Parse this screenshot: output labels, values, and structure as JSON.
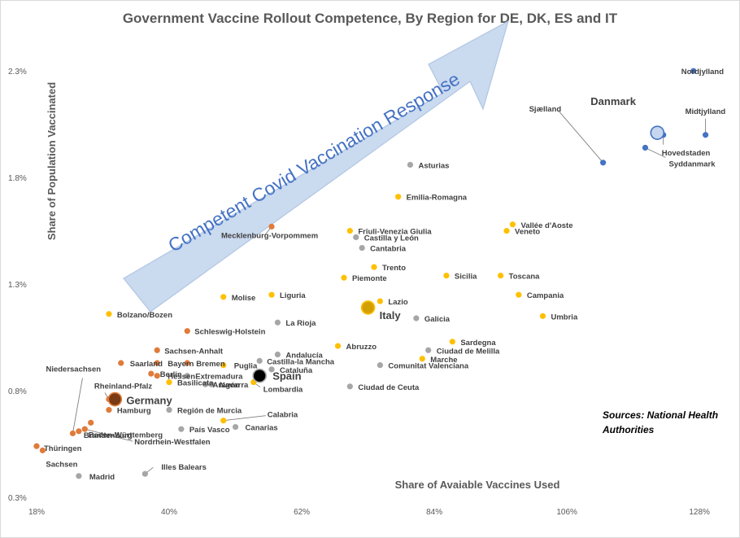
{
  "chart_data": {
    "type": "scatter",
    "title": "Government Vaccine Rollout Competence, By Region for DE, DK, ES and IT",
    "xlabel": "Share of Avaiable Vaccines Used",
    "ylabel": "Share of Population Vaccinated",
    "xlim": [
      0.18,
      1.3
    ],
    "ylim": [
      0.003,
      0.024
    ],
    "x_ticks": [
      "18%",
      "40%",
      "62%",
      "84%",
      "106%",
      "128%"
    ],
    "x_tick_values": [
      0.18,
      0.4,
      0.62,
      0.84,
      1.06,
      1.28
    ],
    "y_ticks": [
      "0.3%",
      "0.8%",
      "1.3%",
      "1.8%",
      "2.3%"
    ],
    "y_tick_values": [
      0.003,
      0.008,
      0.013,
      0.018,
      0.023
    ],
    "grid": false,
    "annotation_arrow": "Competent Covid Vaccination Response",
    "source_note": [
      "Sources: National Health",
      "Authorities"
    ],
    "colors": {
      "Germany": "#e07b39",
      "Denmark": "#4472c4",
      "Spain": "#a6a6a6",
      "Italy": "#ffc000"
    },
    "series": [
      {
        "name": "Germany",
        "points": [
          {
            "label": "Mecklenburg-Vorpommem",
            "x": 0.57,
            "y": 0.0157
          },
          {
            "label": "Schleswig-Holstein",
            "x": 0.43,
            "y": 0.0108
          },
          {
            "label": "Sachsen-Anhalt",
            "x": 0.38,
            "y": 0.0099
          },
          {
            "label": "Saarland",
            "x": 0.32,
            "y": 0.0093
          },
          {
            "label": "Bayern",
            "x": 0.38,
            "y": 0.0093
          },
          {
            "label": "Bremen",
            "x": 0.43,
            "y": 0.0093
          },
          {
            "label": "Berlin",
            "x": 0.37,
            "y": 0.0088
          },
          {
            "label": "Hessen",
            "x": 0.38,
            "y": 0.0087
          },
          {
            "label": "Rheinland-Pfalz",
            "x": 0.3,
            "y": 0.0076
          },
          {
            "label": "Hamburg",
            "x": 0.3,
            "y": 0.0071
          },
          {
            "label": "Niedersachsen",
            "x": 0.24,
            "y": 0.006
          },
          {
            "label": "Baden-Württemberg",
            "x": 0.27,
            "y": 0.0065
          },
          {
            "label": "Brandenburg",
            "x": 0.25,
            "y": 0.0061
          },
          {
            "label": "Nordrhein-Westfalen",
            "x": 0.26,
            "y": 0.0062
          },
          {
            "label": "Thüringen",
            "x": 0.18,
            "y": 0.0054
          },
          {
            "label": "Sachsen",
            "x": 0.19,
            "y": 0.0052
          }
        ]
      },
      {
        "name": "Denmark",
        "points": [
          {
            "label": "Nordjylland",
            "x": 1.27,
            "y": 0.023
          },
          {
            "label": "Midtjylland",
            "x": 1.29,
            "y": 0.02
          },
          {
            "label": "Hovedstaden",
            "x": 1.22,
            "y": 0.02
          },
          {
            "label": "Syddanmark",
            "x": 1.19,
            "y": 0.0194
          },
          {
            "label": "Sjælland",
            "x": 1.12,
            "y": 0.0187
          }
        ]
      },
      {
        "name": "Spain",
        "points": [
          {
            "label": "Asturias",
            "x": 0.8,
            "y": 0.0186
          },
          {
            "label": "Castilla y León",
            "x": 0.71,
            "y": 0.0152
          },
          {
            "label": "Cantabria",
            "x": 0.72,
            "y": 0.0147
          },
          {
            "label": "La Rioja",
            "x": 0.58,
            "y": 0.0112
          },
          {
            "label": "Galicia",
            "x": 0.81,
            "y": 0.0114
          },
          {
            "label": "Andalucía",
            "x": 0.58,
            "y": 0.0097
          },
          {
            "label": "Castilla-la Mancha",
            "x": 0.55,
            "y": 0.0094
          },
          {
            "label": "Cataluña",
            "x": 0.57,
            "y": 0.009
          },
          {
            "label": "Extremadura",
            "x": 0.43,
            "y": 0.0087
          },
          {
            "label": "Aragón",
            "x": 0.46,
            "y": 0.0083
          },
          {
            "label": "Navarra",
            "x": 0.47,
            "y": 0.0083
          },
          {
            "label": "Ciudad de Melilla",
            "x": 0.83,
            "y": 0.0099
          },
          {
            "label": "Comunitat Valenciana",
            "x": 0.75,
            "y": 0.0092
          },
          {
            "label": "Ciudad de Ceuta",
            "x": 0.7,
            "y": 0.0082
          },
          {
            "label": "Región de Murcia",
            "x": 0.4,
            "y": 0.0071
          },
          {
            "label": "País Vasco",
            "x": 0.42,
            "y": 0.0062
          },
          {
            "label": "Canarias",
            "x": 0.51,
            "y": 0.0063
          },
          {
            "label": "Illes Balears",
            "x": 0.36,
            "y": 0.0041
          },
          {
            "label": "Madrid",
            "x": 0.25,
            "y": 0.004
          }
        ]
      },
      {
        "name": "Italy",
        "points": [
          {
            "label": "Emilia-Romagna",
            "x": 0.78,
            "y": 0.0171
          },
          {
            "label": "Friuli-Venezia Giulia",
            "x": 0.7,
            "y": 0.0155
          },
          {
            "label": "Vallée d'Aoste",
            "x": 0.97,
            "y": 0.0158
          },
          {
            "label": "Veneto",
            "x": 0.96,
            "y": 0.0155
          },
          {
            "label": "Trento",
            "x": 0.74,
            "y": 0.0138
          },
          {
            "label": "Piemonte",
            "x": 0.69,
            "y": 0.0133
          },
          {
            "label": "Sicilia",
            "x": 0.86,
            "y": 0.0134
          },
          {
            "label": "Toscana",
            "x": 0.95,
            "y": 0.0134
          },
          {
            "label": "Campania",
            "x": 0.98,
            "y": 0.0125
          },
          {
            "label": "Liguria",
            "x": 0.57,
            "y": 0.0125
          },
          {
            "label": "Molise",
            "x": 0.49,
            "y": 0.0124
          },
          {
            "label": "Lazio",
            "x": 0.75,
            "y": 0.0122
          },
          {
            "label": "Bolzano/Bozen",
            "x": 0.3,
            "y": 0.0116
          },
          {
            "label": "Umbria",
            "x": 1.02,
            "y": 0.0115
          },
          {
            "label": "Sardegna",
            "x": 0.87,
            "y": 0.0103
          },
          {
            "label": "Abruzzo",
            "x": 0.68,
            "y": 0.0101
          },
          {
            "label": "Marche",
            "x": 0.82,
            "y": 0.0095
          },
          {
            "label": "Puglia",
            "x": 0.49,
            "y": 0.0092
          },
          {
            "label": "Basilicata",
            "x": 0.4,
            "y": 0.0084
          },
          {
            "label": "Lombardia",
            "x": 0.54,
            "y": 0.0084
          },
          {
            "label": "Calabria",
            "x": 0.49,
            "y": 0.0066
          }
        ]
      },
      {
        "name": "Country averages",
        "points": [
          {
            "label": "Denmark",
            "x": 1.21,
            "y": 0.0201,
            "country": "Denmark"
          },
          {
            "label": "Italy",
            "x": 0.73,
            "y": 0.0119,
            "country": "Italy"
          },
          {
            "label": "Spain",
            "x": 0.55,
            "y": 0.0087,
            "country": "Spain"
          },
          {
            "label": "Germany",
            "x": 0.31,
            "y": 0.0076,
            "country": "Germany"
          }
        ]
      }
    ],
    "country_labels": {
      "Denmark": "Danmark",
      "Italy": "Italy",
      "Spain": "Spain",
      "Germany": "Germany"
    }
  }
}
